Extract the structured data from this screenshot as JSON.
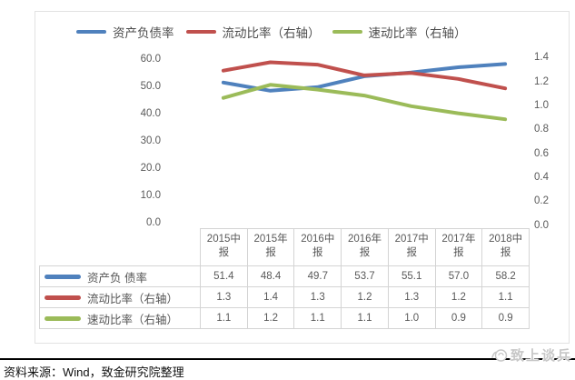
{
  "legend": {
    "items": [
      {
        "key": "asset-liability-ratio",
        "label": "资产负债率",
        "color": "#4f81bd"
      },
      {
        "key": "current-ratio",
        "label": "流动比率（右轴）",
        "color": "#c0504d"
      },
      {
        "key": "quick-ratio",
        "label": "速动比率（右轴）",
        "color": "#9bbb59"
      }
    ]
  },
  "chart_data": {
    "type": "line",
    "categories": [
      "2015中报",
      "2015年报",
      "2016中报",
      "2016年报",
      "2017中报",
      "2017年报",
      "2018中报"
    ],
    "series": [
      {
        "key": "asset-liability-ratio",
        "name": "资产负债率",
        "axis": "left",
        "color": "#4f81bd",
        "values": [
          51.4,
          48.4,
          49.7,
          53.7,
          55.1,
          57.0,
          58.2
        ]
      },
      {
        "key": "current-ratio",
        "name": "流动比率（右轴）",
        "axis": "right",
        "color": "#c0504d",
        "values": [
          1.3,
          1.4,
          1.3,
          1.2,
          1.3,
          1.2,
          1.1
        ],
        "plot_values": [
          1.29,
          1.36,
          1.34,
          1.25,
          1.27,
          1.22,
          1.14
        ]
      },
      {
        "key": "quick-ratio",
        "name": "速动比率（右轴）",
        "axis": "right",
        "color": "#9bbb59",
        "values": [
          1.1,
          1.2,
          1.1,
          1.1,
          1.0,
          0.9,
          0.9
        ],
        "plot_values": [
          1.06,
          1.17,
          1.13,
          1.08,
          0.99,
          0.93,
          0.88
        ]
      }
    ],
    "left_axis": {
      "min": 0,
      "max": 60,
      "ticks": [
        "60.0",
        "50.0",
        "40.0",
        "30.0",
        "20.0",
        "10.0",
        "0.0"
      ]
    },
    "right_axis": {
      "min": 0,
      "max": 1.4,
      "ticks": [
        "1.4",
        "1.2",
        "1.0",
        "0.8",
        "0.6",
        "0.4",
        "0.2",
        "0.0"
      ]
    },
    "gridlines": false,
    "legend_position": "top"
  },
  "table": {
    "column_headers": [
      "2015中\n报",
      "2015年\n报",
      "2016中\n报",
      "2016年\n报",
      "2017中\n报",
      "2017年\n报",
      "2018中\n报"
    ],
    "rows": [
      {
        "key": "asset-liability-ratio",
        "label": "资产负 债率",
        "swatch_color": "#4f81bd",
        "values": [
          "51.4",
          "48.4",
          "49.7",
          "53.7",
          "55.1",
          "57.0",
          "58.2"
        ]
      },
      {
        "key": "current-ratio",
        "label": "流动比率（右轴）",
        "swatch_color": "#c0504d",
        "values": [
          "1.3",
          "1.4",
          "1.3",
          "1.2",
          "1.3",
          "1.2",
          "1.1"
        ]
      },
      {
        "key": "quick-ratio",
        "label": "速动比率（右轴）",
        "swatch_color": "#9bbb59",
        "values": [
          "1.1",
          "1.2",
          "1.1",
          "1.1",
          "1.0",
          "0.9",
          "0.9"
        ]
      }
    ]
  },
  "footer": {
    "source_note": "资料来源：Wind，致金研究院整理"
  },
  "watermark": {
    "text": "致上谈兵"
  }
}
